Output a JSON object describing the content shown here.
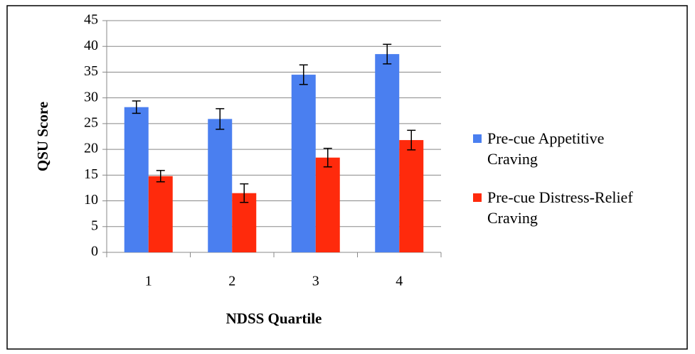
{
  "chart_data": {
    "type": "bar",
    "x_label": "NDSS Quartile",
    "y_label": "QSU Score",
    "categories": [
      "1",
      "2",
      "3",
      "4"
    ],
    "series": [
      {
        "name": "Pre-cue Appetitive Craving",
        "color": "#4a7ff0",
        "values": [
          28.2,
          25.9,
          34.5,
          38.5
        ],
        "errors": [
          1.2,
          2.0,
          1.9,
          1.9
        ]
      },
      {
        "name": "Pre-cue Distress-Relief Craving",
        "color": "#ff2a0c",
        "values": [
          14.8,
          11.5,
          18.4,
          21.8
        ],
        "errors": [
          1.1,
          1.8,
          1.8,
          1.9
        ]
      }
    ],
    "ylim": [
      0,
      45
    ],
    "yticks": [
      0,
      5,
      10,
      15,
      20,
      25,
      30,
      35,
      40,
      45
    ],
    "grid": true,
    "legend": "right"
  }
}
